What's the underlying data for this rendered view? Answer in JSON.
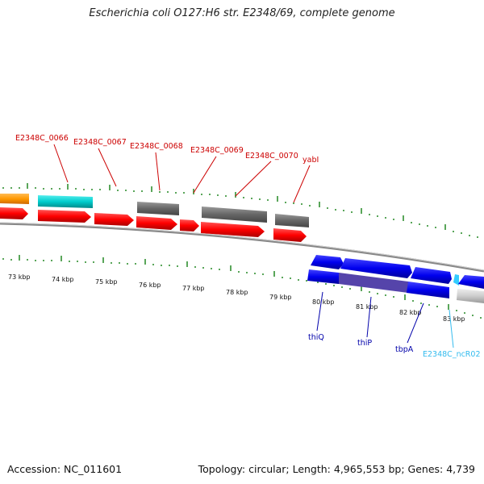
{
  "title": "Escherichia coli O127:H6 str. E2348/69, complete genome",
  "footer": {
    "accession": "Accession: NC_011601",
    "summary": "Topology: circular; Length: 4,965,553 bp; Genes: 4,739"
  },
  "colors": {
    "gene_red": "#ff0000",
    "gene_blue": "#0000ee",
    "gene_gray": "#666666",
    "gene_cyan": "#00cccc",
    "gene_orange": "#ff9900",
    "ncrna_lightblue": "#33ccff",
    "tick_green": "#228822",
    "backbone": "#888888"
  },
  "scale_ticks": [
    {
      "label": "73 kbp"
    },
    {
      "label": "74 kbp"
    },
    {
      "label": "75 kbp"
    },
    {
      "label": "76 kbp"
    },
    {
      "label": "77 kbp"
    },
    {
      "label": "78 kbp"
    },
    {
      "label": "79 kbp"
    },
    {
      "label": "80 kbp"
    },
    {
      "label": "81 kbp"
    },
    {
      "label": "82 kbp"
    },
    {
      "label": "83 kbp"
    }
  ],
  "top_labels": [
    {
      "text": "E2348C_0066"
    },
    {
      "text": "E2348C_0067"
    },
    {
      "text": "E2348C_0068"
    },
    {
      "text": "E2348C_0069"
    },
    {
      "text": "E2348C_0070"
    },
    {
      "text": "yabI"
    }
  ],
  "bottom_labels": [
    {
      "text": "thiQ"
    },
    {
      "text": "thiP"
    },
    {
      "text": "tbpA"
    },
    {
      "text": "E2348C_ncR02"
    }
  ]
}
